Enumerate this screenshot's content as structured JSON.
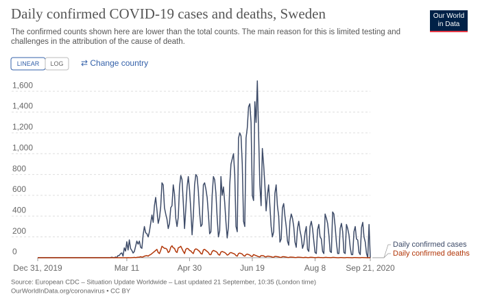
{
  "logo": "Our World in Data",
  "controls": {
    "buttons": [
      "LINEAR",
      "LOG"
    ],
    "change_country": "⇄ Change country"
  },
  "chart_data": {
    "type": "line",
    "title": "Daily confirmed COVID-19 cases and deaths, Sweden",
    "subtitle": [
      "The confirmed counts shown here are lower than the total counts. The main reason for this is limited testing and",
      "challenges in the attribution of the cause of death."
    ],
    "source": [
      "Source: European CDC – Situation Update Worldwide – Last updated 21 September, 10:35 (London time)",
      "OurWorldInData.org/coronavirus • CC BY"
    ],
    "grid": true,
    "xlim": [
      "2019-12-31",
      "2020-09-21"
    ],
    "xticks": [
      {
        "value": "2019-12-31",
        "label": "Dec 31, 2019"
      },
      {
        "value": "2020-03-11",
        "label": "Mar 11"
      },
      {
        "value": "2020-04-30",
        "label": "Apr 30"
      },
      {
        "value": "2020-06-19",
        "label": "Jun 19"
      },
      {
        "value": "2020-08-08",
        "label": "Aug 8"
      },
      {
        "value": "2020-09-21",
        "label": "Sep 21, 2020"
      }
    ],
    "ylim": [
      0,
      1700
    ],
    "yticks": [
      0,
      200,
      400,
      600,
      800,
      {
        "value": 1000,
        "label": "1,000"
      },
      {
        "value": 1200,
        "label": "1,200"
      },
      {
        "value": 1400,
        "label": "1,400"
      },
      {
        "value": 1600,
        "label": "1,600"
      }
    ],
    "x": [
      "2019-12-31",
      "2020-02-25",
      "2020-02-26",
      "2020-02-27",
      "2020-02-28",
      "2020-02-29",
      "2020-03-01",
      "2020-03-02",
      "2020-03-03",
      "2020-03-04",
      "2020-03-05",
      "2020-03-06",
      "2020-03-07",
      "2020-03-08",
      "2020-03-09",
      "2020-03-10",
      "2020-03-11",
      "2020-03-12",
      "2020-03-13",
      "2020-03-14",
      "2020-03-15",
      "2020-03-16",
      "2020-03-17",
      "2020-03-18",
      "2020-03-19",
      "2020-03-20",
      "2020-03-21",
      "2020-03-22",
      "2020-03-23",
      "2020-03-24",
      "2020-03-25",
      "2020-03-26",
      "2020-03-27",
      "2020-03-28",
      "2020-03-29",
      "2020-03-30",
      "2020-03-31",
      "2020-04-01",
      "2020-04-02",
      "2020-04-03",
      "2020-04-04",
      "2020-04-05",
      "2020-04-06",
      "2020-04-07",
      "2020-04-08",
      "2020-04-09",
      "2020-04-10",
      "2020-04-11",
      "2020-04-12",
      "2020-04-13",
      "2020-04-14",
      "2020-04-15",
      "2020-04-16",
      "2020-04-17",
      "2020-04-18",
      "2020-04-19",
      "2020-04-20",
      "2020-04-21",
      "2020-04-22",
      "2020-04-23",
      "2020-04-24",
      "2020-04-25",
      "2020-04-26",
      "2020-04-27",
      "2020-04-28",
      "2020-04-29",
      "2020-04-30",
      "2020-05-01",
      "2020-05-02",
      "2020-05-03",
      "2020-05-04",
      "2020-05-05",
      "2020-05-06",
      "2020-05-07",
      "2020-05-08",
      "2020-05-09",
      "2020-05-10",
      "2020-05-11",
      "2020-05-12",
      "2020-05-13",
      "2020-05-14",
      "2020-05-15",
      "2020-05-16",
      "2020-05-17",
      "2020-05-18",
      "2020-05-19",
      "2020-05-20",
      "2020-05-21",
      "2020-05-22",
      "2020-05-23",
      "2020-05-24",
      "2020-05-25",
      "2020-05-26",
      "2020-05-27",
      "2020-05-28",
      "2020-05-29",
      "2020-05-30",
      "2020-05-31",
      "2020-06-01",
      "2020-06-02",
      "2020-06-03",
      "2020-06-04",
      "2020-06-05",
      "2020-06-06",
      "2020-06-07",
      "2020-06-08",
      "2020-06-09",
      "2020-06-10",
      "2020-06-11",
      "2020-06-12",
      "2020-06-13",
      "2020-06-14",
      "2020-06-15",
      "2020-06-16",
      "2020-06-17",
      "2020-06-18",
      "2020-06-19",
      "2020-06-20",
      "2020-06-21",
      "2020-06-22",
      "2020-06-23",
      "2020-06-24",
      "2020-06-25",
      "2020-06-26",
      "2020-06-27",
      "2020-06-28",
      "2020-06-29",
      "2020-06-30",
      "2020-07-01",
      "2020-07-02",
      "2020-07-03",
      "2020-07-04",
      "2020-07-05",
      "2020-07-06",
      "2020-07-07",
      "2020-07-08",
      "2020-07-09",
      "2020-07-10",
      "2020-07-11",
      "2020-07-12",
      "2020-07-13",
      "2020-07-14",
      "2020-07-15",
      "2020-07-16",
      "2020-07-17",
      "2020-07-18",
      "2020-07-19",
      "2020-07-20",
      "2020-07-21",
      "2020-07-22",
      "2020-07-23",
      "2020-07-24",
      "2020-07-25",
      "2020-07-26",
      "2020-07-27",
      "2020-07-28",
      "2020-07-29",
      "2020-07-30",
      "2020-07-31",
      "2020-08-01",
      "2020-08-02",
      "2020-08-03",
      "2020-08-04",
      "2020-08-05",
      "2020-08-06",
      "2020-08-07",
      "2020-08-08",
      "2020-08-09",
      "2020-08-10",
      "2020-08-11",
      "2020-08-12",
      "2020-08-13",
      "2020-08-14",
      "2020-08-15",
      "2020-08-16",
      "2020-08-17",
      "2020-08-18",
      "2020-08-19",
      "2020-08-20",
      "2020-08-21",
      "2020-08-22",
      "2020-08-23",
      "2020-08-24",
      "2020-08-25",
      "2020-08-26",
      "2020-08-27",
      "2020-08-28",
      "2020-08-29",
      "2020-08-30",
      "2020-08-31",
      "2020-09-01",
      "2020-09-02",
      "2020-09-03",
      "2020-09-04",
      "2020-09-05",
      "2020-09-06",
      "2020-09-07",
      "2020-09-08",
      "2020-09-09",
      "2020-09-10",
      "2020-09-11",
      "2020-09-12",
      "2020-09-13",
      "2020-09-14",
      "2020-09-15",
      "2020-09-16",
      "2020-09-17",
      "2020-09-18",
      "2020-09-19",
      "2020-09-20",
      "2020-09-21"
    ],
    "series": [
      {
        "name": "Daily confirmed cases",
        "color": "#3c4a67",
        "values": [
          0,
          0,
          0,
          1,
          5,
          2,
          0,
          7,
          1,
          21,
          22,
          39,
          46,
          15,
          95,
          64,
          153,
          74,
          171,
          88,
          70,
          45,
          60,
          110,
          160,
          130,
          160,
          100,
          90,
          220,
          300,
          240,
          230,
          200,
          250,
          330,
          410,
          340,
          500,
          580,
          460,
          330,
          380,
          490,
          720,
          700,
          480,
          420,
          370,
          280,
          330,
          480,
          500,
          700,
          610,
          380,
          300,
          390,
          680,
          790,
          750,
          530,
          280,
          470,
          680,
          780,
          650,
          460,
          220,
          400,
          700,
          800,
          780,
          640,
          430,
          300,
          320,
          700,
          720,
          660,
          580,
          420,
          230,
          250,
          600,
          780,
          750,
          620,
          380,
          200,
          260,
          780,
          600,
          680,
          530,
          340,
          190,
          300,
          700,
          900,
          950,
          1000,
          800,
          300,
          250,
          1150,
          1200,
          1170,
          900,
          350,
          300,
          1150,
          1250,
          1450,
          1480,
          1300,
          600,
          550,
          1500,
          1300,
          1700,
          1200,
          700,
          500,
          1050,
          900,
          700,
          450,
          600,
          700,
          500,
          300,
          200,
          250,
          620,
          700,
          500,
          400,
          150,
          180,
          480,
          520,
          400,
          300,
          160,
          120,
          350,
          420,
          380,
          300,
          150,
          100,
          280,
          350,
          260,
          200,
          90,
          130,
          240,
          300,
          80,
          60,
          300,
          350,
          280,
          160,
          50,
          40,
          270,
          320,
          200,
          180,
          60,
          40,
          420,
          380,
          330,
          220,
          60,
          50,
          440,
          420,
          300,
          150,
          40,
          40,
          280,
          330,
          250,
          50,
          40,
          320,
          280,
          220,
          100,
          30,
          30,
          250,
          300,
          180,
          170,
          50,
          30,
          290,
          340,
          200,
          150,
          40,
          0,
          320,
          0
        ]
      },
      {
        "name": "Daily confirmed deaths",
        "color": "#b13507",
        "values": [
          0,
          0,
          0,
          0,
          0,
          0,
          0,
          0,
          0,
          0,
          0,
          0,
          0,
          0,
          0,
          0,
          0,
          1,
          0,
          0,
          1,
          2,
          3,
          1,
          3,
          5,
          5,
          10,
          5,
          8,
          15,
          18,
          20,
          15,
          25,
          30,
          40,
          50,
          60,
          70,
          80,
          50,
          40,
          70,
          110,
          100,
          90,
          90,
          80,
          50,
          60,
          100,
          115,
          95,
          90,
          60,
          50,
          95,
          100,
          110,
          85,
          60,
          40,
          80,
          90,
          85,
          70,
          65,
          50,
          40,
          75,
          85,
          80,
          70,
          60,
          40,
          35,
          75,
          80,
          70,
          60,
          50,
          30,
          30,
          60,
          70,
          65,
          60,
          50,
          30,
          25,
          55,
          60,
          55,
          50,
          40,
          25,
          30,
          45,
          50,
          45,
          40,
          35,
          20,
          15,
          40,
          45,
          40,
          35,
          20,
          15,
          30,
          35,
          30,
          25,
          15,
          12,
          30,
          25,
          20,
          15,
          10,
          8,
          20,
          20,
          18,
          10,
          8,
          15,
          15,
          12,
          10,
          5,
          5,
          12,
          12,
          10,
          8,
          4,
          3,
          10,
          10,
          8,
          6,
          3,
          2,
          6,
          6,
          5,
          4,
          2,
          2,
          5,
          5,
          4,
          3,
          2,
          1,
          4,
          3,
          1,
          1,
          4,
          4,
          3,
          2,
          1,
          1,
          3,
          3,
          2,
          2,
          1,
          1,
          3,
          3,
          2,
          2,
          1,
          1,
          3,
          3,
          2,
          1,
          0,
          0,
          2,
          2,
          1,
          0,
          0,
          2,
          2,
          1,
          1,
          0,
          0,
          2,
          2,
          1,
          1,
          0,
          0,
          2,
          2,
          1,
          1,
          0,
          0,
          1,
          0
        ]
      }
    ]
  }
}
